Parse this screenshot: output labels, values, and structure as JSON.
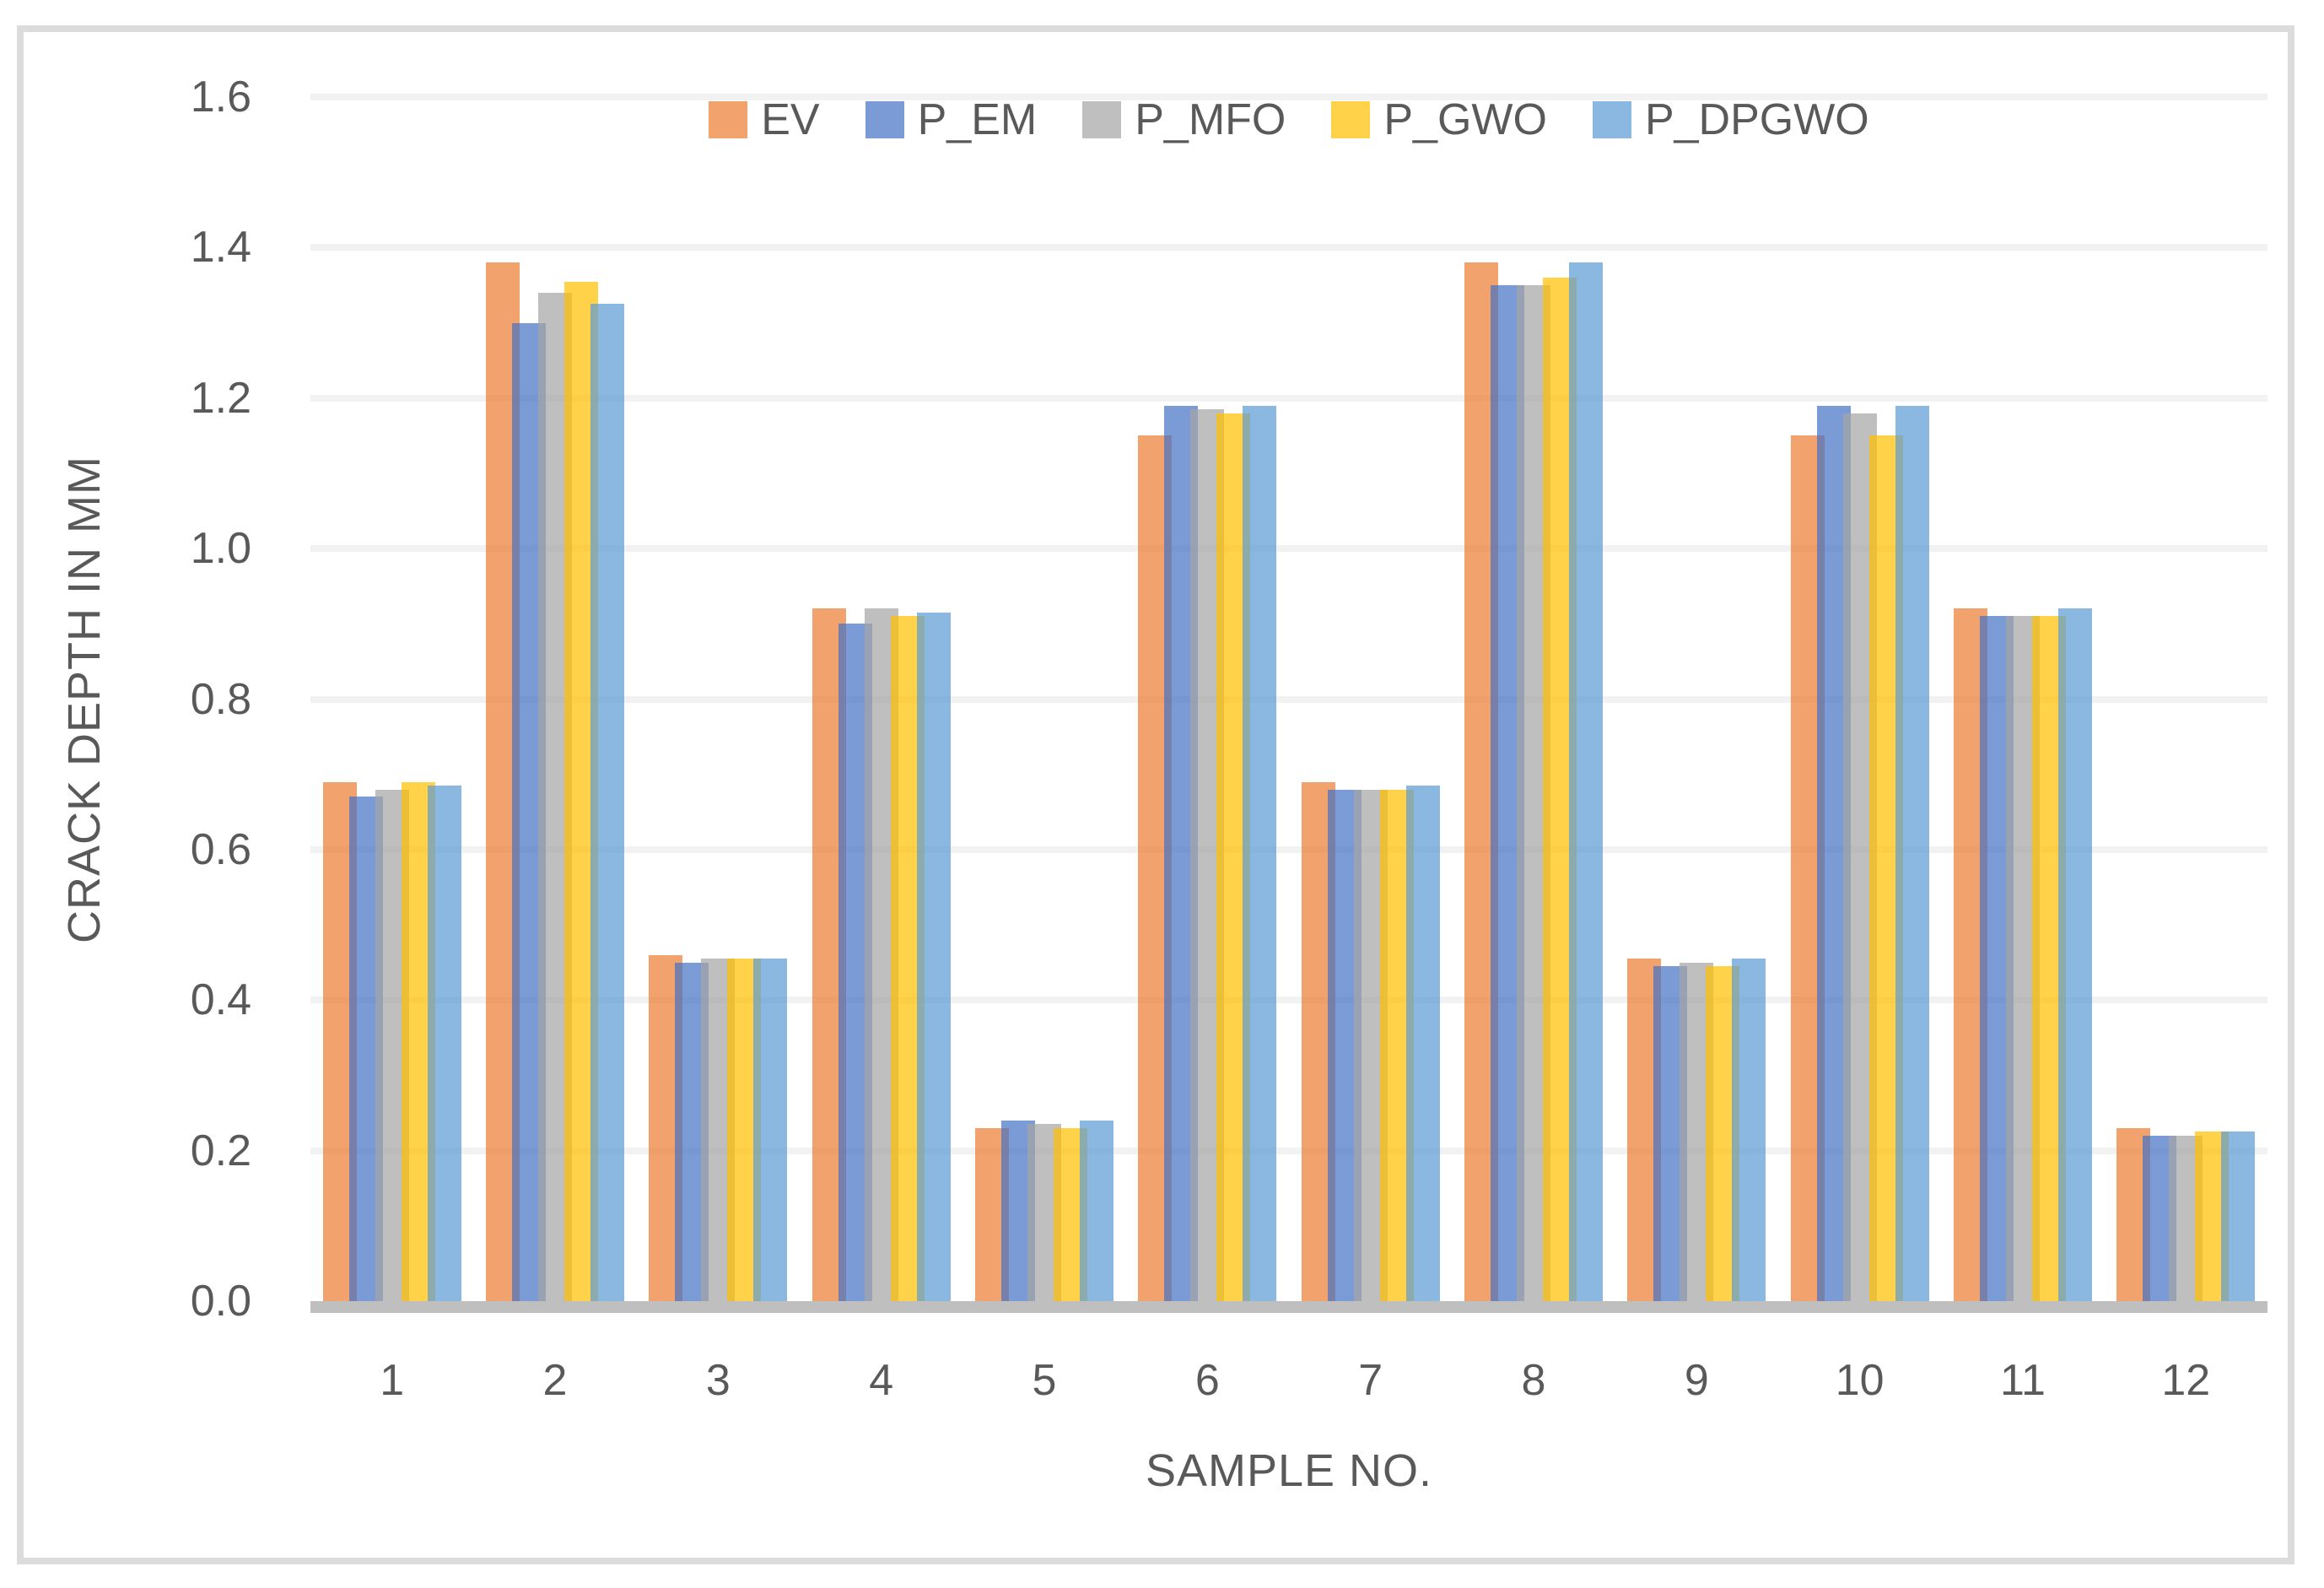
{
  "chart_data": {
    "type": "bar",
    "title": "",
    "xlabel": "SAMPLE NO.",
    "ylabel": "CRACK DEPTH IN MM",
    "categories": [
      "1",
      "2",
      "3",
      "4",
      "5",
      "6",
      "7",
      "8",
      "9",
      "10",
      "11",
      "12"
    ],
    "series": [
      {
        "name": "EV",
        "color": "#ED7D31",
        "values": [
          0.69,
          1.38,
          0.46,
          0.92,
          0.23,
          1.15,
          0.69,
          1.38,
          0.455,
          1.15,
          0.92,
          0.23
        ]
      },
      {
        "name": "P_EM",
        "color": "#4472C4",
        "values": [
          0.67,
          1.3,
          0.45,
          0.9,
          0.24,
          1.19,
          0.68,
          1.35,
          0.445,
          1.19,
          0.91,
          0.22
        ]
      },
      {
        "name": "P_MFO",
        "color": "#A5A5A5",
        "values": [
          0.68,
          1.34,
          0.455,
          0.92,
          0.235,
          1.185,
          0.68,
          1.35,
          0.45,
          1.18,
          0.91,
          0.22
        ]
      },
      {
        "name": "P_GWO",
        "color": "#FFC000",
        "values": [
          0.69,
          1.355,
          0.455,
          0.91,
          0.23,
          1.18,
          0.68,
          1.36,
          0.445,
          1.15,
          0.91,
          0.225
        ]
      },
      {
        "name": "P_DPGWO",
        "color": "#5B9BD5",
        "values": [
          0.685,
          1.325,
          0.455,
          0.915,
          0.24,
          1.19,
          0.685,
          1.38,
          0.455,
          1.19,
          0.92,
          0.225
        ]
      }
    ],
    "ylim": [
      0,
      1.6
    ],
    "ytick_step": 0.2,
    "ytick_labels": [
      "0.0",
      "0.2",
      "0.4",
      "0.6",
      "0.8",
      "1.0",
      "1.2",
      "1.4",
      "1.6"
    ],
    "bar_opacity": 0.71,
    "legend_position": "top",
    "grid": true,
    "colors": {
      "text": "#595959",
      "gridline": "#F2F2F2",
      "axis_line": "#BFBFBF",
      "frame_border": "#DCDCDC",
      "background": "#FFFFFF"
    }
  }
}
